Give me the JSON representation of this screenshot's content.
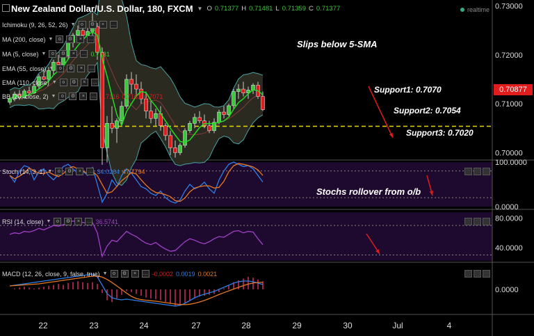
{
  "header": {
    "title": "New Zealand Dollar/U.S. Dollar, 180, FXCM",
    "o_label": "O",
    "o_value": "0.71377",
    "h_label": "H",
    "h_value": "0.71481",
    "l_label": "L",
    "l_value": "0.71359",
    "c_label": "C",
    "c_value": "0.71377",
    "realtime": "realtime"
  },
  "indicators": {
    "ichimoku": "Ichimoku (9, 26, 52, 26)",
    "ma200": "MA (200, close)",
    "ma5": "MA (5, close)",
    "ma5_value": "0.7131",
    "ema55": "EMA (55, close)",
    "ema110": "EMA (110, close)",
    "bb": "BB (20, close, 2)",
    "bb_values": [
      "0.7116",
      "0.7161",
      "0.7071"
    ],
    "stoch": "Stoch (14, 3, 1)",
    "stoch_values": [
      "34.0264",
      "47.7794"
    ],
    "rsi": "RSI (14, close)",
    "rsi_value": "36.5741",
    "macd": "MACD (12, 26, close, 9, false, true)",
    "macd_values": [
      "-0.0002",
      "0.0019",
      "0.0021"
    ]
  },
  "annotations": {
    "sma": "Slips below 5-SMA",
    "support1": "Support1: 0.7070",
    "support2": "Support2: 0.7054",
    "support3": "Support3: 0.7020",
    "stochs": "Stochs rollover from o/b"
  },
  "price_tag": "0.70877",
  "colors": {
    "up": "#3ec63e",
    "down": "#e01c1c",
    "sma": "#22dd22",
    "support": "#e8d800",
    "stoch_k": "#2f7fe8",
    "stoch_d": "#e87820",
    "rsi": "#a040c8",
    "panel_bg": "#1e0a2e"
  },
  "chart_data": [
    {
      "type": "candlestick",
      "title": "New Zealand Dollar/U.S. Dollar, 180, FXCM",
      "x_ticks": [
        "22",
        "23",
        "24",
        "27",
        "28",
        "29",
        "30",
        "Jul",
        "4"
      ],
      "y_ticks": [
        "0.73000",
        "0.72000",
        "0.71000",
        "0.70000"
      ],
      "ylim": [
        0.6985,
        0.7305
      ],
      "support_level": 0.7054,
      "current_price": 0.70877,
      "candles": [
        [
          0.7103,
          0.7115,
          0.7098,
          0.711
        ],
        [
          0.711,
          0.7125,
          0.7105,
          0.712
        ],
        [
          0.712,
          0.7128,
          0.7108,
          0.7112
        ],
        [
          0.7112,
          0.713,
          0.711,
          0.7126
        ],
        [
          0.7126,
          0.7135,
          0.7118,
          0.7122
        ],
        [
          0.7122,
          0.714,
          0.712,
          0.7136
        ],
        [
          0.7136,
          0.716,
          0.713,
          0.7155
        ],
        [
          0.7155,
          0.717,
          0.7148,
          0.715
        ],
        [
          0.715,
          0.7175,
          0.7145,
          0.7168
        ],
        [
          0.7168,
          0.719,
          0.716,
          0.7185
        ],
        [
          0.7185,
          0.72,
          0.7175,
          0.718
        ],
        [
          0.718,
          0.7205,
          0.717,
          0.7198
        ],
        [
          0.7198,
          0.723,
          0.719,
          0.7225
        ],
        [
          0.7225,
          0.7245,
          0.7215,
          0.724
        ],
        [
          0.724,
          0.726,
          0.723,
          0.725
        ],
        [
          0.725,
          0.7265,
          0.7235,
          0.724
        ],
        [
          0.724,
          0.7255,
          0.723,
          0.7248
        ],
        [
          0.7248,
          0.7285,
          0.724,
          0.7258
        ],
        [
          0.7258,
          0.7265,
          0.719,
          0.7205
        ],
        [
          0.7205,
          0.7215,
          0.6975,
          0.701
        ],
        [
          0.701,
          0.7075,
          0.698,
          0.706
        ],
        [
          0.706,
          0.7095,
          0.704,
          0.705
        ],
        [
          0.705,
          0.707,
          0.702,
          0.7065
        ],
        [
          0.7065,
          0.7105,
          0.7055,
          0.7095
        ],
        [
          0.7095,
          0.716,
          0.709,
          0.715
        ],
        [
          0.715,
          0.7165,
          0.712,
          0.714
        ],
        [
          0.714,
          0.716,
          0.7115,
          0.713
        ],
        [
          0.713,
          0.7145,
          0.71,
          0.711
        ],
        [
          0.711,
          0.7125,
          0.707,
          0.7085
        ],
        [
          0.7085,
          0.7105,
          0.706,
          0.707
        ],
        [
          0.707,
          0.709,
          0.7055,
          0.708
        ],
        [
          0.708,
          0.7095,
          0.7045,
          0.7055
        ],
        [
          0.7055,
          0.706,
          0.7025,
          0.7035
        ],
        [
          0.7035,
          0.7045,
          0.6995,
          0.701
        ],
        [
          0.701,
          0.7025,
          0.699,
          0.7
        ],
        [
          0.7,
          0.702,
          0.6995,
          0.7015
        ],
        [
          0.7015,
          0.705,
          0.701,
          0.7045
        ],
        [
          0.7045,
          0.7065,
          0.704,
          0.706
        ],
        [
          0.706,
          0.708,
          0.705,
          0.7072
        ],
        [
          0.7072,
          0.7085,
          0.706,
          0.7065
        ],
        [
          0.7065,
          0.7078,
          0.705,
          0.7055
        ],
        [
          0.7055,
          0.7065,
          0.704,
          0.7045
        ],
        [
          0.7045,
          0.707,
          0.704,
          0.7062
        ],
        [
          0.7062,
          0.7088,
          0.7058,
          0.7083
        ],
        [
          0.7083,
          0.7095,
          0.707,
          0.7078
        ],
        [
          0.7078,
          0.71,
          0.7075,
          0.7096
        ],
        [
          0.7096,
          0.713,
          0.709,
          0.7125
        ],
        [
          0.7125,
          0.714,
          0.711,
          0.713
        ],
        [
          0.713,
          0.7145,
          0.7115,
          0.7122
        ],
        [
          0.7122,
          0.7135,
          0.711,
          0.7128
        ],
        [
          0.7128,
          0.7142,
          0.712,
          0.7138
        ],
        [
          0.7138,
          0.7145,
          0.711,
          0.7115
        ],
        [
          0.7115,
          0.7125,
          0.7085,
          0.7088
        ]
      ]
    },
    {
      "type": "line",
      "title": "Stoch (14, 3, 1)",
      "y_ticks": [
        "100.0000",
        "0.0000"
      ],
      "ylim": [
        0,
        100
      ]
    },
    {
      "type": "line",
      "title": "RSI (14, close)",
      "y_ticks": [
        "80.0000",
        "40.0000"
      ],
      "ylim": [
        22,
        88
      ]
    },
    {
      "type": "line",
      "title": "MACD (12, 26, close, 9, false, true)",
      "y_ticks": [
        "0.0000"
      ]
    }
  ]
}
